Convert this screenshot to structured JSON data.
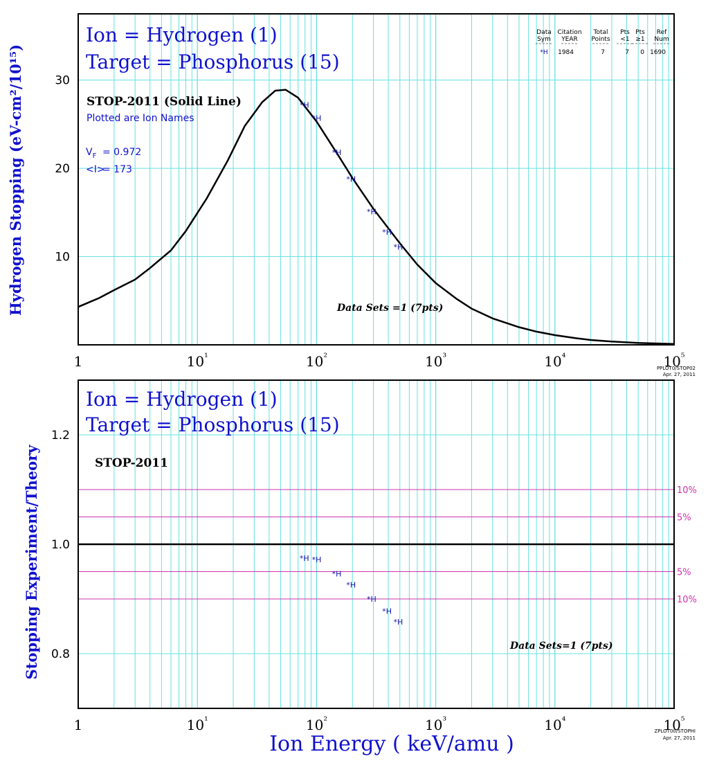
{
  "colors": {
    "grid": "#66e0e0",
    "curve": "#000000",
    "label": "#1111cc",
    "points": "#1111aa",
    "band": "#cc33aa",
    "frame": "#000000"
  },
  "panel1": {
    "title_line1": "Ion = Hydrogen (1)",
    "title_line2": "Target = Phosphorus (15)",
    "ylabel": "Hydrogen Stopping (eV-cm²/10¹⁵)",
    "theory_label": "STOP-2011 (Solid Line)",
    "plotted_note": "Plotted are Ion Names",
    "vf_label": "V",
    "vf_sub": "F",
    "vf_value": "= 0.972",
    "mean_i_label": "<I>",
    "mean_i_value": "= 173",
    "datasets_note": "Data Sets =1 (7pts)",
    "corner_code": "PPLOT0/STOP02",
    "corner_date": "Apr. 27, 2011",
    "table": {
      "headers": [
        [
          "Data",
          "Sym"
        ],
        [
          "Citation",
          "YEAR"
        ],
        [
          "Total",
          "Points"
        ],
        [
          "Pts",
          "<1"
        ],
        [
          "Pts",
          "≥1"
        ],
        [
          "Ref",
          "Num"
        ]
      ],
      "row": [
        "*H",
        "1984",
        "7",
        "7",
        "0",
        "1690"
      ]
    }
  },
  "panel2": {
    "title_line1": "Ion = Hydrogen (1)",
    "title_line2": "Target = Phosphorus (15)",
    "ylabel": "Stopping   Experiment/Theory",
    "theory_label": "STOP-2011",
    "datasets_note": "Data Sets=1 (7pts)",
    "band_labels": [
      "10%",
      "5%",
      "5%",
      "10%"
    ],
    "corner_code": "ZPLOT00/STOPHI",
    "corner_date": "Apr. 27, 2011"
  },
  "xlabel": "Ion  Energy  ( keV/amu )",
  "chart_data": [
    {
      "type": "line",
      "title": "Ion = Hydrogen (1) / Target = Phosphorus (15)",
      "xlabel": "",
      "ylabel": "Hydrogen Stopping (eV-cm²/10¹⁵)",
      "x_scale": "log",
      "xlim": [
        1,
        100000
      ],
      "ylim": [
        0,
        37.5
      ],
      "x_ticks": [
        "1",
        "10¹",
        "10²",
        "10³",
        "10⁴",
        "10⁵"
      ],
      "y_ticks": [
        10,
        20,
        30
      ],
      "grid": true,
      "series": [
        {
          "name": "STOP-2011",
          "style": "line",
          "x": [
            1,
            1.5,
            2,
            3,
            4,
            6,
            8,
            12,
            18,
            25,
            35,
            45,
            55,
            70,
            100,
            150,
            200,
            300,
            500,
            700,
            1000,
            1500,
            2000,
            3000,
            5000,
            7000,
            10000,
            15000,
            20000,
            30000,
            50000,
            100000
          ],
          "y": [
            4.3,
            5.3,
            6.2,
            7.4,
            8.7,
            10.7,
            12.9,
            16.6,
            20.9,
            24.8,
            27.5,
            28.8,
            28.9,
            28.0,
            25.3,
            21.6,
            18.9,
            15.4,
            11.5,
            9.1,
            7.0,
            5.2,
            4.1,
            3.0,
            2.0,
            1.5,
            1.1,
            0.75,
            0.55,
            0.38,
            0.22,
            0.1
          ]
        },
        {
          "name": "*H",
          "style": "points",
          "x": [
            75,
            95,
            140,
            185,
            275,
            370,
            460
          ],
          "y": [
            27.2,
            25.7,
            21.8,
            18.8,
            15.1,
            12.8,
            11.1
          ]
        }
      ]
    },
    {
      "type": "scatter",
      "title": "Ion = Hydrogen (1) / Target = Phosphorus (15)",
      "xlabel": "Ion  Energy  ( keV/amu )",
      "ylabel": "Stopping   Experiment/Theory",
      "x_scale": "log",
      "xlim": [
        1,
        100000
      ],
      "ylim": [
        0.7,
        1.3
      ],
      "x_ticks": [
        "1",
        "10¹",
        "10²",
        "10³",
        "10⁴",
        "10⁵"
      ],
      "y_ticks": [
        0.8,
        1.0,
        1.2
      ],
      "grid": true,
      "reference_lines": [
        1.1,
        1.05,
        1.0,
        0.95,
        0.9
      ],
      "series": [
        {
          "name": "*H",
          "x": [
            75,
            95,
            140,
            185,
            275,
            370,
            460
          ],
          "y": [
            0.975,
            0.972,
            0.946,
            0.926,
            0.9,
            0.878,
            0.858
          ]
        }
      ]
    }
  ]
}
